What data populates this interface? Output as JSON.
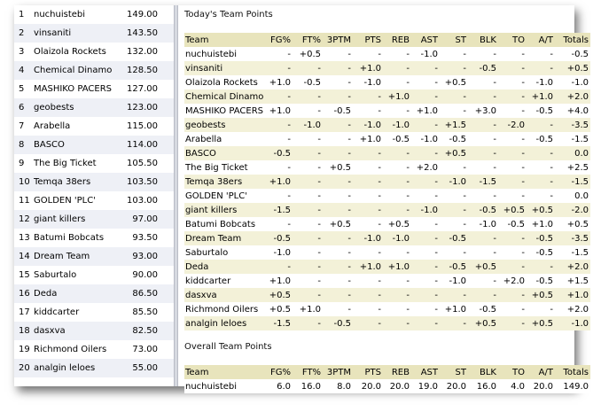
{
  "standings": [
    {
      "rank": "1",
      "team": "nuchuistebi",
      "points": "149.00"
    },
    {
      "rank": "2",
      "team": "vinsaniti",
      "points": "143.50"
    },
    {
      "rank": "3",
      "team": "Olaizola Rockets",
      "points": "132.00"
    },
    {
      "rank": "4",
      "team": "Chemical Dinamo",
      "points": "128.50"
    },
    {
      "rank": "5",
      "team": "MASHIKO PACERS",
      "points": "127.00"
    },
    {
      "rank": "6",
      "team": "geobests",
      "points": "123.00"
    },
    {
      "rank": "7",
      "team": "Arabella",
      "points": "115.00"
    },
    {
      "rank": "8",
      "team": "BASCO",
      "points": "114.00"
    },
    {
      "rank": "9",
      "team": "The Big Ticket",
      "points": "105.50"
    },
    {
      "rank": "10",
      "team": "Temqa 38ers",
      "points": "103.50"
    },
    {
      "rank": "11",
      "team": "GOLDEN 'PLC'",
      "points": "103.00"
    },
    {
      "rank": "12",
      "team": "giant killers",
      "points": "97.00"
    },
    {
      "rank": "13",
      "team": "Batumi Bobcats",
      "points": "93.50"
    },
    {
      "rank": "14",
      "team": "Dream Team",
      "points": "93.00"
    },
    {
      "rank": "15",
      "team": "Saburtalo",
      "points": "90.00"
    },
    {
      "rank": "16",
      "team": "Deda",
      "points": "86.50"
    },
    {
      "rank": "17",
      "team": "kiddcarter",
      "points": "85.50"
    },
    {
      "rank": "18",
      "team": "dasxva",
      "points": "82.50"
    },
    {
      "rank": "19",
      "team": "Richmond Oilers",
      "points": "73.00"
    },
    {
      "rank": "20",
      "team": "analgin leloes",
      "points": "55.00"
    }
  ],
  "today": {
    "title": "Today's Team Points",
    "headers": [
      "Team",
      "FG%",
      "FT%",
      "3PTM",
      "PTS",
      "REB",
      "AST",
      "ST",
      "BLK",
      "TO",
      "A/T",
      "Totals"
    ],
    "rows": [
      [
        "nuchuistebi",
        "-",
        "+0.5",
        "-",
        "-",
        "-",
        "-1.0",
        "-",
        "-",
        "-",
        "-",
        "-0.5"
      ],
      [
        "vinsaniti",
        "-",
        "-",
        "-",
        "+1.0",
        "-",
        "-",
        "-",
        "-0.5",
        "-",
        "-",
        "+0.5"
      ],
      [
        "Olaizola Rockets",
        "+1.0",
        "-0.5",
        "-",
        "-1.0",
        "-",
        "-",
        "+0.5",
        "-",
        "-",
        "-1.0",
        "-1.0"
      ],
      [
        "Chemical Dinamo",
        "-",
        "-",
        "-",
        "-",
        "+1.0",
        "-",
        "-",
        "-",
        "-",
        "+1.0",
        "+2.0"
      ],
      [
        "MASHIKO PACERS",
        "+1.0",
        "-",
        "-0.5",
        "-",
        "-",
        "+1.0",
        "-",
        "+3.0",
        "-",
        "-0.5",
        "+4.0"
      ],
      [
        "geobests",
        "-",
        "-1.0",
        "-",
        "-1.0",
        "-1.0",
        "-",
        "+1.5",
        "-",
        "-2.0",
        "-",
        "-3.5"
      ],
      [
        "Arabella",
        "-",
        "-",
        "-",
        "+1.0",
        "-0.5",
        "-1.0",
        "-0.5",
        "-",
        "-",
        "-0.5",
        "-1.5"
      ],
      [
        "BASCO",
        "-0.5",
        "-",
        "-",
        "-",
        "-",
        "-",
        "+0.5",
        "-",
        "-",
        "-",
        "0.0"
      ],
      [
        "The Big Ticket",
        "-",
        "-",
        "+0.5",
        "-",
        "-",
        "+2.0",
        "-",
        "-",
        "-",
        "-",
        "+2.5"
      ],
      [
        "Temqa 38ers",
        "+1.0",
        "-",
        "-",
        "-",
        "-",
        "-",
        "-1.0",
        "-1.5",
        "-",
        "-",
        "-1.5"
      ],
      [
        "GOLDEN 'PLC'",
        "-",
        "-",
        "-",
        "-",
        "-",
        "-",
        "-",
        "-",
        "-",
        "-",
        "0.0"
      ],
      [
        "giant killers",
        "-1.5",
        "-",
        "-",
        "-",
        "-",
        "-1.0",
        "-",
        "-0.5",
        "+0.5",
        "+0.5",
        "-2.0"
      ],
      [
        "Batumi Bobcats",
        "-",
        "-",
        "+0.5",
        "-",
        "+0.5",
        "-",
        "-",
        "-1.0",
        "-0.5",
        "+1.0",
        "+0.5"
      ],
      [
        "Dream Team",
        "-0.5",
        "-",
        "-",
        "-1.0",
        "-1.0",
        "-",
        "-0.5",
        "-",
        "-",
        "-0.5",
        "-3.5"
      ],
      [
        "Saburtalo",
        "-1.0",
        "-",
        "-",
        "-",
        "-",
        "-",
        "-",
        "-",
        "-",
        "-0.5",
        "-1.5"
      ],
      [
        "Deda",
        "-",
        "-",
        "-",
        "+1.0",
        "+1.0",
        "-",
        "-0.5",
        "+0.5",
        "-",
        "-",
        "+2.0"
      ],
      [
        "kiddcarter",
        "+1.0",
        "-",
        "-",
        "-",
        "-",
        "-",
        "-1.0",
        "-",
        "+2.0",
        "-0.5",
        "+1.5"
      ],
      [
        "dasxva",
        "+0.5",
        "-",
        "-",
        "-",
        "-",
        "-",
        "-",
        "-",
        "-",
        "+0.5",
        "+1.0"
      ],
      [
        "Richmond Oilers",
        "+0.5",
        "+1.0",
        "-",
        "-",
        "-",
        "-",
        "+1.0",
        "-0.5",
        "-",
        "-",
        "+2.0"
      ],
      [
        "analgin leloes",
        "-1.5",
        "-",
        "-0.5",
        "-",
        "-",
        "-",
        "-",
        "+0.5",
        "-",
        "+0.5",
        "-1.0"
      ]
    ]
  },
  "overall": {
    "title": "Overall Team Points",
    "headers": [
      "Team",
      "FG%",
      "FT%",
      "3PTM",
      "PTS",
      "REB",
      "AST",
      "ST",
      "BLK",
      "TO",
      "A/T",
      "Totals"
    ],
    "rows": [
      [
        "nuchuistebi",
        "6.0",
        "16.0",
        "8.0",
        "20.0",
        "20.0",
        "19.0",
        "20.0",
        "16.0",
        "4.0",
        "20.0",
        "149.0"
      ]
    ]
  },
  "colors": {
    "header": "#e8e4bc",
    "row_tint": "#f3f1d8",
    "standings_tint": "#eef0f6"
  }
}
